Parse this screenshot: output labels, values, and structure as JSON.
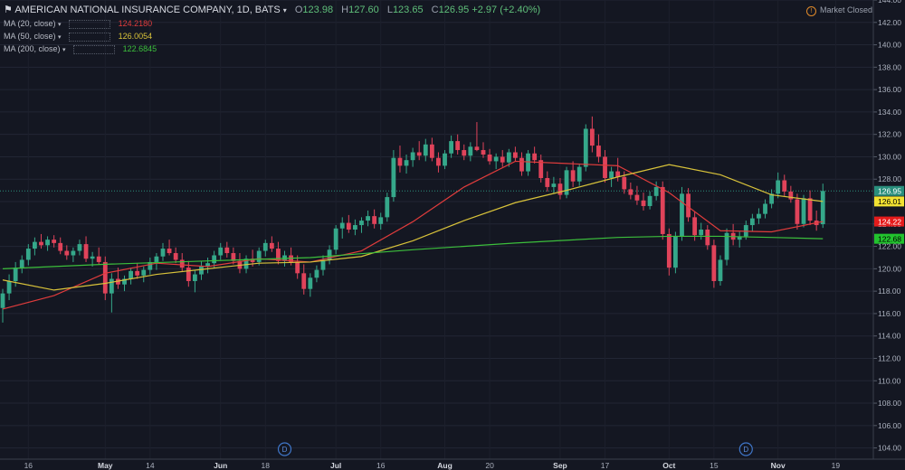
{
  "header": {
    "symbol": "AMERICAN NATIONAL INSURANCE COMPANY, 1D, BATS",
    "open_label": "O",
    "open": "123.98",
    "high_label": "H",
    "high": "127.60",
    "low_label": "L",
    "low": "123.65",
    "close_label": "C",
    "close": "126.95",
    "change": "+2.97 (+2.40%)"
  },
  "indicators": [
    {
      "label": "MA (20, close)",
      "value": "124.2180",
      "color": "#e03c3c"
    },
    {
      "label": "MA (50, close)",
      "value": "126.0054",
      "color": "#d8c23a"
    },
    {
      "label": "MA (200, close)",
      "value": "122.6845",
      "color": "#3cbf3c"
    }
  ],
  "market_status": "Market Closed",
  "price_tags": [
    {
      "text": "126.95",
      "value": 126.95,
      "bg": "#2a8f7d",
      "fg": "#ffffff"
    },
    {
      "text": "126.01",
      "value": 126.01,
      "bg": "#f2e232",
      "fg": "#000000"
    },
    {
      "text": "124.22",
      "value": 124.22,
      "bg": "#e31b1b",
      "fg": "#ffffff"
    },
    {
      "text": "122.68",
      "value": 122.68,
      "bg": "#22c32e",
      "fg": "#000000"
    }
  ],
  "dividend_marker": "D",
  "chart_data": {
    "type": "candlestick",
    "ylim": [
      103,
      144
    ],
    "y_ticks": [
      "104.00",
      "106.00",
      "108.00",
      "110.00",
      "112.00",
      "114.00",
      "116.00",
      "118.00",
      "120.00",
      "122.00",
      "124.00",
      "126.00",
      "128.00",
      "130.00",
      "132.00",
      "134.00",
      "136.00",
      "138.00",
      "140.00",
      "142.00",
      "144.00"
    ],
    "x_ticks": [
      "16",
      "May",
      "14",
      "Jun",
      "18",
      "Jul",
      "16",
      "Aug",
      "20",
      "Sep",
      "17",
      "Oct",
      "15",
      "Nov",
      "19"
    ],
    "dividend_days": [
      44,
      116
    ],
    "grid": true,
    "last_close_line": 126.95,
    "candles": [
      {
        "o": 116.5,
        "h": 118.2,
        "l": 115.2,
        "c": 117.8
      },
      {
        "o": 117.8,
        "h": 119.5,
        "l": 117.2,
        "c": 118.9
      },
      {
        "o": 118.9,
        "h": 120.6,
        "l": 118.4,
        "c": 120.1
      },
      {
        "o": 120.1,
        "h": 121.2,
        "l": 119.6,
        "c": 120.8
      },
      {
        "o": 120.8,
        "h": 122.2,
        "l": 120.3,
        "c": 121.8
      },
      {
        "o": 121.8,
        "h": 122.8,
        "l": 121.2,
        "c": 122.4
      },
      {
        "o": 122.4,
        "h": 123.1,
        "l": 121.8,
        "c": 122.1
      },
      {
        "o": 122.1,
        "h": 122.9,
        "l": 121.6,
        "c": 122.6
      },
      {
        "o": 122.6,
        "h": 123.0,
        "l": 121.9,
        "c": 122.3
      },
      {
        "o": 122.3,
        "h": 122.8,
        "l": 121.3,
        "c": 121.6
      },
      {
        "o": 121.6,
        "h": 122.1,
        "l": 120.8,
        "c": 121.2
      },
      {
        "o": 121.2,
        "h": 121.9,
        "l": 120.6,
        "c": 121.6
      },
      {
        "o": 121.6,
        "h": 122.6,
        "l": 121.2,
        "c": 122.2
      },
      {
        "o": 122.2,
        "h": 122.9,
        "l": 120.6,
        "c": 120.9
      },
      {
        "o": 120.9,
        "h": 121.5,
        "l": 120.2,
        "c": 121.1
      },
      {
        "o": 121.1,
        "h": 121.9,
        "l": 120.4,
        "c": 120.6
      },
      {
        "o": 120.6,
        "h": 121.1,
        "l": 117.2,
        "c": 117.8
      },
      {
        "o": 117.8,
        "h": 119.6,
        "l": 116.1,
        "c": 119.1
      },
      {
        "o": 119.1,
        "h": 120.1,
        "l": 118.2,
        "c": 118.6
      },
      {
        "o": 118.6,
        "h": 119.4,
        "l": 118.0,
        "c": 119.1
      },
      {
        "o": 119.1,
        "h": 120.1,
        "l": 118.6,
        "c": 119.8
      },
      {
        "o": 119.8,
        "h": 120.5,
        "l": 119.1,
        "c": 119.4
      },
      {
        "o": 119.4,
        "h": 120.2,
        "l": 118.8,
        "c": 119.9
      },
      {
        "o": 119.9,
        "h": 121.0,
        "l": 119.5,
        "c": 120.6
      },
      {
        "o": 120.6,
        "h": 121.4,
        "l": 119.9,
        "c": 121.1
      },
      {
        "o": 121.1,
        "h": 122.3,
        "l": 120.7,
        "c": 121.8
      },
      {
        "o": 121.8,
        "h": 122.6,
        "l": 121.2,
        "c": 121.4
      },
      {
        "o": 121.4,
        "h": 121.9,
        "l": 120.5,
        "c": 120.8
      },
      {
        "o": 120.8,
        "h": 121.4,
        "l": 119.7,
        "c": 120.1
      },
      {
        "o": 120.1,
        "h": 120.7,
        "l": 118.4,
        "c": 118.9
      },
      {
        "o": 118.9,
        "h": 119.9,
        "l": 117.9,
        "c": 119.5
      },
      {
        "o": 119.5,
        "h": 120.7,
        "l": 119.0,
        "c": 120.2
      },
      {
        "o": 120.2,
        "h": 121.0,
        "l": 119.6,
        "c": 120.5
      },
      {
        "o": 120.5,
        "h": 121.6,
        "l": 120.1,
        "c": 121.2
      },
      {
        "o": 121.2,
        "h": 122.3,
        "l": 120.8,
        "c": 121.9
      },
      {
        "o": 121.9,
        "h": 122.4,
        "l": 121.0,
        "c": 121.4
      },
      {
        "o": 121.4,
        "h": 121.9,
        "l": 120.4,
        "c": 120.7
      },
      {
        "o": 120.7,
        "h": 121.4,
        "l": 119.6,
        "c": 120.0
      },
      {
        "o": 120.0,
        "h": 121.2,
        "l": 119.6,
        "c": 120.9
      },
      {
        "o": 120.9,
        "h": 121.7,
        "l": 120.2,
        "c": 120.6
      },
      {
        "o": 120.6,
        "h": 121.9,
        "l": 120.3,
        "c": 121.6
      },
      {
        "o": 121.6,
        "h": 122.6,
        "l": 121.1,
        "c": 122.3
      },
      {
        "o": 122.3,
        "h": 122.9,
        "l": 121.5,
        "c": 121.8
      },
      {
        "o": 121.8,
        "h": 122.4,
        "l": 120.4,
        "c": 120.7
      },
      {
        "o": 120.7,
        "h": 121.6,
        "l": 120.2,
        "c": 121.2
      },
      {
        "o": 121.2,
        "h": 121.9,
        "l": 120.3,
        "c": 120.6
      },
      {
        "o": 120.6,
        "h": 121.2,
        "l": 119.1,
        "c": 119.6
      },
      {
        "o": 119.6,
        "h": 120.4,
        "l": 117.7,
        "c": 118.2
      },
      {
        "o": 118.2,
        "h": 119.6,
        "l": 117.5,
        "c": 119.2
      },
      {
        "o": 119.2,
        "h": 120.3,
        "l": 118.8,
        "c": 119.9
      },
      {
        "o": 119.9,
        "h": 121.2,
        "l": 119.4,
        "c": 120.8
      },
      {
        "o": 120.8,
        "h": 122.1,
        "l": 120.4,
        "c": 121.7
      },
      {
        "o": 121.7,
        "h": 123.9,
        "l": 121.3,
        "c": 123.6
      },
      {
        "o": 123.6,
        "h": 124.6,
        "l": 122.7,
        "c": 124.1
      },
      {
        "o": 124.1,
        "h": 124.8,
        "l": 123.2,
        "c": 123.5
      },
      {
        "o": 123.5,
        "h": 124.4,
        "l": 123.0,
        "c": 123.9
      },
      {
        "o": 123.9,
        "h": 124.6,
        "l": 123.2,
        "c": 124.3
      },
      {
        "o": 124.3,
        "h": 125.2,
        "l": 123.8,
        "c": 124.7
      },
      {
        "o": 124.7,
        "h": 125.3,
        "l": 123.6,
        "c": 124.0
      },
      {
        "o": 124.0,
        "h": 125.0,
        "l": 123.5,
        "c": 124.6
      },
      {
        "o": 124.6,
        "h": 126.8,
        "l": 124.2,
        "c": 126.4
      },
      {
        "o": 126.4,
        "h": 130.6,
        "l": 126.0,
        "c": 129.9
      },
      {
        "o": 129.9,
        "h": 131.0,
        "l": 128.6,
        "c": 129.2
      },
      {
        "o": 129.2,
        "h": 130.2,
        "l": 128.5,
        "c": 129.7
      },
      {
        "o": 129.7,
        "h": 130.8,
        "l": 129.1,
        "c": 130.4
      },
      {
        "o": 130.4,
        "h": 131.4,
        "l": 129.7,
        "c": 130.1
      },
      {
        "o": 130.1,
        "h": 131.6,
        "l": 129.6,
        "c": 131.1
      },
      {
        "o": 131.1,
        "h": 131.7,
        "l": 129.6,
        "c": 129.9
      },
      {
        "o": 129.9,
        "h": 130.4,
        "l": 128.6,
        "c": 129.2
      },
      {
        "o": 129.2,
        "h": 130.6,
        "l": 128.9,
        "c": 130.3
      },
      {
        "o": 130.3,
        "h": 131.9,
        "l": 129.9,
        "c": 131.4
      },
      {
        "o": 131.4,
        "h": 132.0,
        "l": 130.2,
        "c": 130.6
      },
      {
        "o": 130.6,
        "h": 131.1,
        "l": 129.7,
        "c": 130.1
      },
      {
        "o": 130.1,
        "h": 131.3,
        "l": 129.6,
        "c": 130.9
      },
      {
        "o": 130.9,
        "h": 133.1,
        "l": 130.5,
        "c": 130.6
      },
      {
        "o": 130.6,
        "h": 131.3,
        "l": 129.9,
        "c": 130.2
      },
      {
        "o": 130.2,
        "h": 130.7,
        "l": 129.3,
        "c": 129.6
      },
      {
        "o": 129.6,
        "h": 130.3,
        "l": 128.9,
        "c": 130.0
      },
      {
        "o": 130.0,
        "h": 130.6,
        "l": 129.1,
        "c": 129.5
      },
      {
        "o": 129.5,
        "h": 130.7,
        "l": 129.1,
        "c": 130.4
      },
      {
        "o": 130.4,
        "h": 130.9,
        "l": 129.6,
        "c": 129.9
      },
      {
        "o": 129.9,
        "h": 130.4,
        "l": 128.3,
        "c": 128.7
      },
      {
        "o": 128.7,
        "h": 130.6,
        "l": 128.3,
        "c": 130.3
      },
      {
        "o": 130.3,
        "h": 130.9,
        "l": 129.4,
        "c": 129.7
      },
      {
        "o": 129.7,
        "h": 130.2,
        "l": 127.7,
        "c": 128.1
      },
      {
        "o": 128.1,
        "h": 128.7,
        "l": 126.9,
        "c": 127.3
      },
      {
        "o": 127.3,
        "h": 128.2,
        "l": 126.7,
        "c": 127.6
      },
      {
        "o": 127.6,
        "h": 128.1,
        "l": 126.2,
        "c": 126.6
      },
      {
        "o": 126.6,
        "h": 129.1,
        "l": 126.3,
        "c": 128.8
      },
      {
        "o": 128.8,
        "h": 129.6,
        "l": 127.3,
        "c": 127.8
      },
      {
        "o": 127.8,
        "h": 129.4,
        "l": 127.4,
        "c": 129.1
      },
      {
        "o": 129.1,
        "h": 132.9,
        "l": 128.7,
        "c": 132.5
      },
      {
        "o": 132.5,
        "h": 133.6,
        "l": 130.4,
        "c": 131.0
      },
      {
        "o": 131.0,
        "h": 132.0,
        "l": 129.5,
        "c": 130.0
      },
      {
        "o": 130.0,
        "h": 130.6,
        "l": 127.7,
        "c": 128.1
      },
      {
        "o": 128.1,
        "h": 129.1,
        "l": 127.3,
        "c": 128.7
      },
      {
        "o": 128.7,
        "h": 129.9,
        "l": 127.8,
        "c": 128.2
      },
      {
        "o": 128.2,
        "h": 128.7,
        "l": 126.7,
        "c": 127.1
      },
      {
        "o": 127.1,
        "h": 127.7,
        "l": 126.2,
        "c": 126.6
      },
      {
        "o": 126.6,
        "h": 127.4,
        "l": 125.7,
        "c": 126.1
      },
      {
        "o": 126.1,
        "h": 126.8,
        "l": 125.2,
        "c": 125.6
      },
      {
        "o": 125.6,
        "h": 126.9,
        "l": 125.3,
        "c": 126.5
      },
      {
        "o": 126.5,
        "h": 127.8,
        "l": 126.1,
        "c": 127.3
      },
      {
        "o": 127.3,
        "h": 127.8,
        "l": 122.6,
        "c": 123.1
      },
      {
        "o": 123.1,
        "h": 123.6,
        "l": 119.4,
        "c": 120.1
      },
      {
        "o": 120.1,
        "h": 123.3,
        "l": 119.6,
        "c": 122.9
      },
      {
        "o": 122.9,
        "h": 127.3,
        "l": 122.5,
        "c": 126.7
      },
      {
        "o": 126.7,
        "h": 127.2,
        "l": 124.2,
        "c": 124.6
      },
      {
        "o": 124.6,
        "h": 125.1,
        "l": 122.5,
        "c": 123.0
      },
      {
        "o": 123.0,
        "h": 124.1,
        "l": 122.6,
        "c": 123.5
      },
      {
        "o": 123.5,
        "h": 123.9,
        "l": 121.7,
        "c": 122.1
      },
      {
        "o": 122.1,
        "h": 122.6,
        "l": 118.3,
        "c": 118.9
      },
      {
        "o": 118.9,
        "h": 121.2,
        "l": 118.5,
        "c": 120.8
      },
      {
        "o": 120.8,
        "h": 123.6,
        "l": 120.3,
        "c": 123.2
      },
      {
        "o": 123.2,
        "h": 124.0,
        "l": 122.1,
        "c": 122.6
      },
      {
        "o": 122.6,
        "h": 123.3,
        "l": 121.9,
        "c": 122.9
      },
      {
        "o": 122.9,
        "h": 124.3,
        "l": 122.6,
        "c": 123.9
      },
      {
        "o": 123.9,
        "h": 124.9,
        "l": 123.3,
        "c": 124.5
      },
      {
        "o": 124.5,
        "h": 125.4,
        "l": 124.0,
        "c": 124.9
      },
      {
        "o": 124.9,
        "h": 126.2,
        "l": 124.5,
        "c": 125.8
      },
      {
        "o": 125.8,
        "h": 127.1,
        "l": 125.4,
        "c": 126.7
      },
      {
        "o": 126.7,
        "h": 128.6,
        "l": 126.3,
        "c": 127.9
      },
      {
        "o": 127.9,
        "h": 128.4,
        "l": 126.5,
        "c": 126.9
      },
      {
        "o": 126.9,
        "h": 127.4,
        "l": 125.9,
        "c": 126.2
      },
      {
        "o": 126.2,
        "h": 126.7,
        "l": 123.5,
        "c": 124.0
      },
      {
        "o": 124.0,
        "h": 126.6,
        "l": 123.7,
        "c": 126.3
      },
      {
        "o": 126.3,
        "h": 127.0,
        "l": 123.9,
        "c": 124.3
      },
      {
        "o": 124.3,
        "h": 125.2,
        "l": 123.4,
        "c": 123.9
      },
      {
        "o": 123.98,
        "h": 127.6,
        "l": 123.65,
        "c": 126.95
      }
    ],
    "series": [
      {
        "name": "MA (20, close)",
        "color": "#e03c3c",
        "points": [
          [
            0,
            116.4
          ],
          [
            8,
            117.6
          ],
          [
            16,
            119.6
          ],
          [
            24,
            120.5
          ],
          [
            32,
            120.2
          ],
          [
            40,
            120.9
          ],
          [
            48,
            120.6
          ],
          [
            56,
            121.6
          ],
          [
            64,
            124.2
          ],
          [
            72,
            127.3
          ],
          [
            80,
            129.6
          ],
          [
            88,
            129.4
          ],
          [
            96,
            129.2
          ],
          [
            104,
            126.8
          ],
          [
            112,
            123.4
          ],
          [
            120,
            123.3
          ],
          [
            128,
            124.22
          ]
        ]
      },
      {
        "name": "MA (50, close)",
        "color": "#d8c23a",
        "points": [
          [
            0,
            119.0
          ],
          [
            8,
            118.1
          ],
          [
            16,
            118.7
          ],
          [
            24,
            119.5
          ],
          [
            32,
            120.0
          ],
          [
            40,
            120.5
          ],
          [
            48,
            120.6
          ],
          [
            56,
            121.1
          ],
          [
            64,
            122.5
          ],
          [
            72,
            124.3
          ],
          [
            80,
            125.9
          ],
          [
            88,
            127.0
          ],
          [
            96,
            128.2
          ],
          [
            104,
            129.3
          ],
          [
            112,
            128.4
          ],
          [
            120,
            126.6
          ],
          [
            128,
            126.01
          ]
        ]
      },
      {
        "name": "MA (200, close)",
        "color": "#3cbf3c",
        "points": [
          [
            0,
            120.0
          ],
          [
            16,
            120.4
          ],
          [
            32,
            120.7
          ],
          [
            48,
            121.0
          ],
          [
            64,
            121.7
          ],
          [
            80,
            122.3
          ],
          [
            96,
            122.8
          ],
          [
            104,
            122.9
          ],
          [
            112,
            122.9
          ],
          [
            120,
            122.8
          ],
          [
            128,
            122.68
          ]
        ]
      }
    ]
  }
}
